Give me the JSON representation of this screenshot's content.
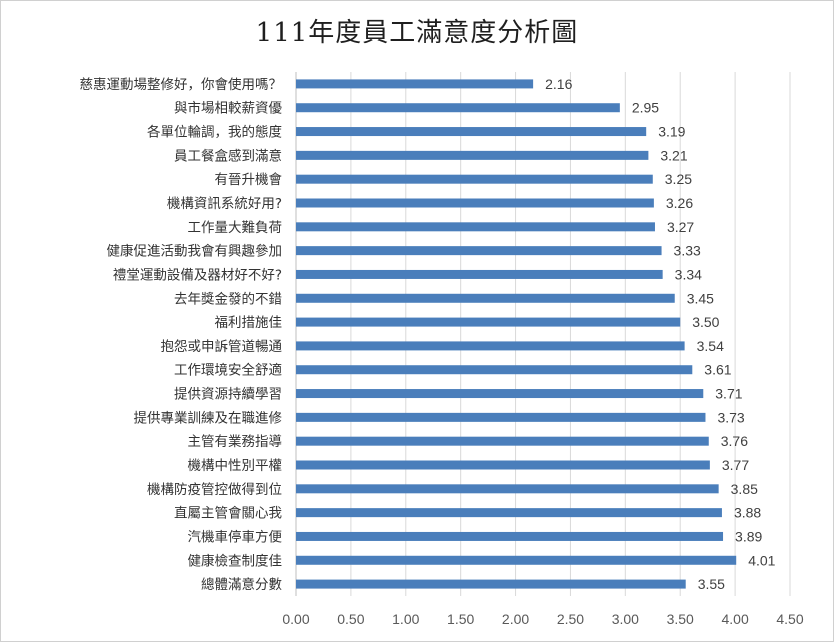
{
  "chart_data": {
    "type": "bar",
    "orientation": "horizontal",
    "title": "111年度員工滿意度分析圖",
    "xlim": [
      0,
      4.5
    ],
    "xticks": [
      "0.00",
      "0.50",
      "1.00",
      "1.50",
      "2.00",
      "2.50",
      "3.00",
      "3.50",
      "4.00",
      "4.50"
    ],
    "grid": true,
    "bar_color": "#4a7ebb",
    "categories": [
      "慈惠運動場整修好，你會使用嗎？",
      "與市場相較薪資優",
      "各單位輪調，我的態度",
      "員工餐盒感到滿意",
      "有晉升機會",
      "機構資訊系統好用?",
      "工作量大難負荷",
      "健康促進活動我會有興趣參加",
      "禮堂運動設備及器材好不好?",
      "去年獎金發的不錯",
      "福利措施佳",
      "抱怨或申訴管道暢通",
      "工作環境安全舒適",
      "提供資源持續學習",
      "提供專業訓練及在職進修",
      "主管有業務指導",
      "機構中性別平權",
      "機構防疫管控做得到位",
      "直屬主管會關心我",
      "汽機車停車方便",
      "健康檢查制度佳",
      "總體滿意分數"
    ],
    "values": [
      2.16,
      2.95,
      3.19,
      3.21,
      3.25,
      3.26,
      3.27,
      3.33,
      3.34,
      3.45,
      3.5,
      3.54,
      3.61,
      3.71,
      3.73,
      3.76,
      3.77,
      3.85,
      3.88,
      3.89,
      4.01,
      3.55
    ],
    "value_labels": [
      "2.16",
      "2.95",
      "3.19",
      "3.21",
      "3.25",
      "3.26",
      "3.27",
      "3.33",
      "3.34",
      "3.45",
      "3.50",
      "3.54",
      "3.61",
      "3.71",
      "3.73",
      "3.76",
      "3.77",
      "3.85",
      "3.88",
      "3.89",
      "4.01",
      "3.55"
    ]
  }
}
